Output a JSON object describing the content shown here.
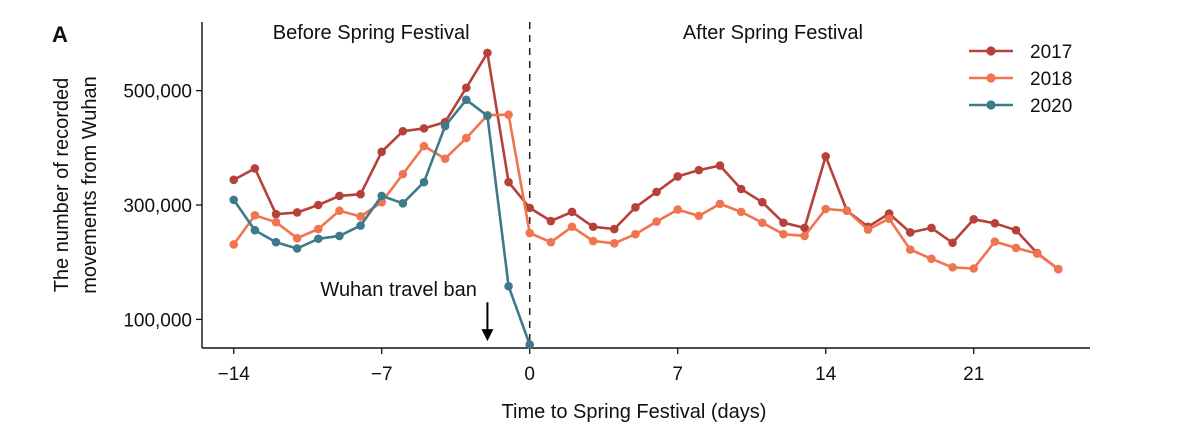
{
  "chart_data": {
    "type": "line",
    "panel_label": "A",
    "xlabel": "Time to Spring Festival (days)",
    "ylabel_lines": [
      "The number of recorded",
      "movements from Wuhan"
    ],
    "xlim": [
      -15.5,
      26.5
    ],
    "ylim": [
      50000,
      620000
    ],
    "x_ticks": [
      -14,
      -7,
      0,
      7,
      14,
      21
    ],
    "x_tick_labels": [
      "−14",
      "−7",
      "0",
      "7",
      "14",
      "21"
    ],
    "y_ticks": [
      100000,
      300000,
      500000
    ],
    "y_tick_labels": [
      "100,000",
      "300,000",
      "500,000"
    ],
    "grid": false,
    "legend_position": "top-right",
    "annotations": [
      {
        "text": "Before Spring Festival",
        "x": -7.5,
        "y": 590000
      },
      {
        "text": "After Spring Festival",
        "x": 11.5,
        "y": 590000
      },
      {
        "text": "Wuhan travel ban",
        "x": -6.2,
        "y": 141000
      }
    ],
    "arrow": {
      "x": -2,
      "y_from": 130000,
      "y_to": 62000
    },
    "divider_x": 0,
    "series": [
      {
        "name": "2017",
        "color": "#B5413A",
        "x": [
          -14,
          -13,
          -12,
          -11,
          -10,
          -9,
          -8,
          -7,
          -6,
          -5,
          -4,
          -3,
          -2,
          -1,
          0,
          1,
          2,
          3,
          4,
          5,
          6,
          7,
          8,
          9,
          10,
          11,
          12,
          13,
          14,
          15,
          16,
          17,
          18,
          19,
          20,
          21,
          22,
          23,
          24,
          25
        ],
        "values": [
          344000,
          364000,
          284000,
          287000,
          300000,
          316000,
          319000,
          393000,
          429000,
          434000,
          445000,
          505000,
          566000,
          340000,
          295000,
          272000,
          288000,
          262000,
          258000,
          296000,
          323000,
          350000,
          361000,
          369000,
          328000,
          305000,
          269000,
          260000,
          385000,
          290000,
          262000,
          285000,
          252000,
          260000,
          234000,
          275000,
          268000,
          256000,
          216000,
          188000
        ]
      },
      {
        "name": "2018",
        "color": "#EE7550",
        "x": [
          -14,
          -13,
          -12,
          -11,
          -10,
          -9,
          -8,
          -7,
          -6,
          -5,
          -4,
          -3,
          -2,
          -1,
          0,
          1,
          2,
          3,
          4,
          5,
          6,
          7,
          8,
          9,
          10,
          11,
          12,
          13,
          14,
          15,
          16,
          17,
          18,
          19,
          20,
          21,
          22,
          23,
          24,
          25
        ],
        "values": [
          231000,
          282000,
          270000,
          242000,
          258000,
          290000,
          280000,
          305000,
          354000,
          403000,
          381000,
          417000,
          457000,
          458000,
          251000,
          235000,
          262000,
          237000,
          233000,
          249000,
          271000,
          292000,
          281000,
          302000,
          288000,
          269000,
          249000,
          246000,
          293000,
          290000,
          257000,
          276000,
          222000,
          206000,
          191000,
          189000,
          236000,
          225000,
          215000,
          188000
        ]
      },
      {
        "name": "2020",
        "color": "#3E7A8C",
        "x": [
          -14,
          -13,
          -12,
          -11,
          -10,
          -9,
          -8,
          -7,
          -6,
          -5,
          -4,
          -3,
          -2,
          -1,
          0
        ],
        "values": [
          309000,
          256000,
          235000,
          224000,
          241000,
          246000,
          264000,
          316000,
          303000,
          340000,
          438000,
          484000,
          456000,
          158000,
          56000
        ]
      }
    ]
  }
}
